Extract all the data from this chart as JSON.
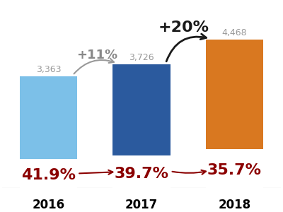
{
  "categories": [
    "2016",
    "2017",
    "2018"
  ],
  "values": [
    3363,
    3726,
    4468
  ],
  "bar_colors": [
    "#7cc0e8",
    "#2b5a9e",
    "#d97820"
  ],
  "pct_labels": [
    "41.9%",
    "39.7%",
    "35.7%"
  ],
  "pct_color": "#8b0000",
  "count_labels": [
    "3,363",
    "3,726",
    "4,468"
  ],
  "count_color": "#999999",
  "growth_color_11": "#888888",
  "growth_color_20": "#1a1a1a",
  "dark_red": "#8b0000",
  "background_color": "#ffffff",
  "bar_width": 0.62,
  "ylim": [
    0,
    5600
  ],
  "pct_fontsize": 16,
  "count_fontsize": 9,
  "xlabel_fontsize": 12,
  "growth11_fontsize": 13,
  "growth20_fontsize": 16
}
